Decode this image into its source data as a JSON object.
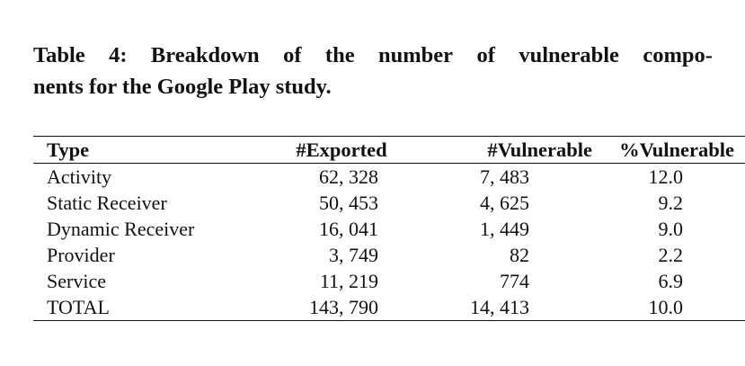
{
  "caption": {
    "line1_words": [
      "Table",
      "4:",
      "Breakdown",
      "of",
      "the",
      "number",
      "of",
      "vulnerable",
      "compo-"
    ],
    "line2": "nents for the Google Play study."
  },
  "table": {
    "headers": {
      "type": "Type",
      "exported": "#Exported",
      "vulnerable": "#Vulnerable",
      "pct_vulnerable": "%Vulnerable"
    },
    "rows": [
      {
        "type": "Activity",
        "exported": "62, 328",
        "vulnerable": "7, 483",
        "pct": "12.0"
      },
      {
        "type": "Static Receiver",
        "exported": "50, 453",
        "vulnerable": "4, 625",
        "pct": "9.2"
      },
      {
        "type": "Dynamic Receiver",
        "exported": "16, 041",
        "vulnerable": "1, 449",
        "pct": "9.0"
      },
      {
        "type": "Provider",
        "exported": "3, 749",
        "vulnerable": "82",
        "pct": "2.2"
      },
      {
        "type": "Service",
        "exported": "11, 219",
        "vulnerable": "774",
        "pct": "6.9"
      },
      {
        "type": "TOTAL",
        "exported": "143, 790",
        "vulnerable": "14, 413",
        "pct": "10.0"
      }
    ]
  }
}
